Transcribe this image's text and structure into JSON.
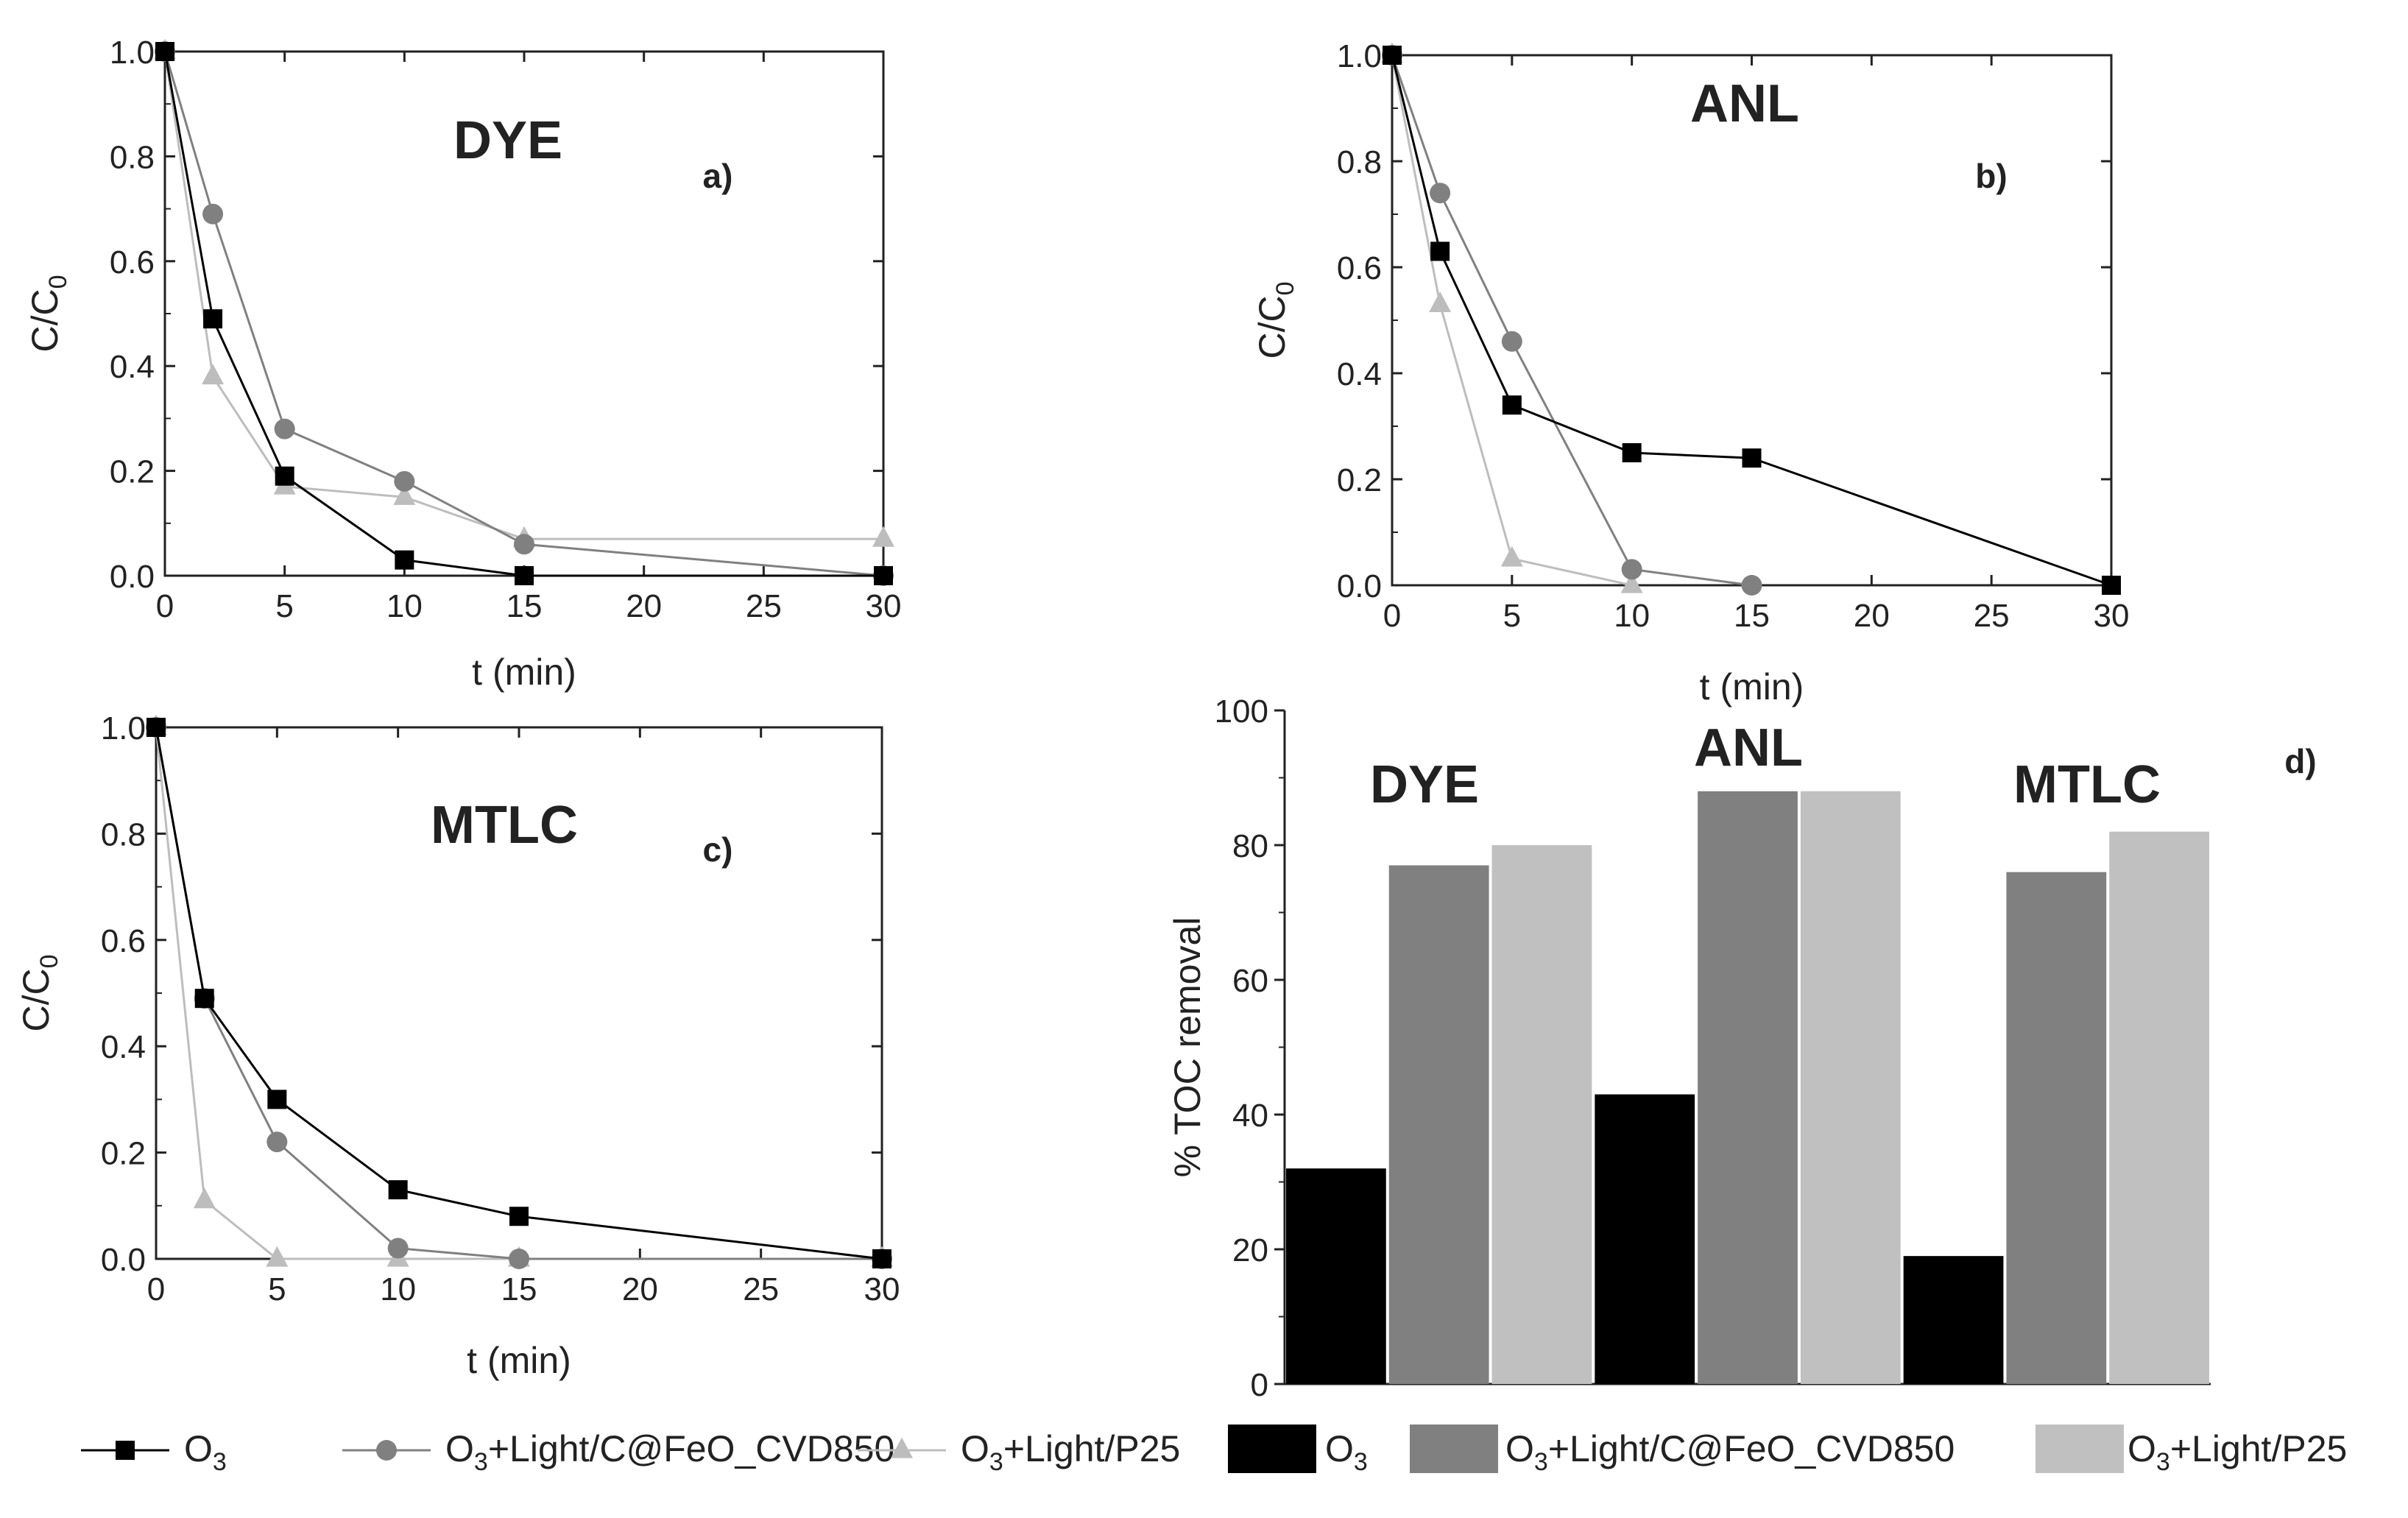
{
  "chart_data": [
    {
      "id": "a",
      "type": "line",
      "title": "DYE",
      "panel_label": "a)",
      "xlabel": "t (min)",
      "ylabel": "C/C",
      "ylabel_sub": "0",
      "xlim": [
        0,
        30
      ],
      "ylim": [
        0,
        1
      ],
      "xticks": [
        0,
        5,
        10,
        15,
        20,
        25,
        30
      ],
      "yticks": [
        0.0,
        0.2,
        0.4,
        0.6,
        0.8,
        1.0
      ],
      "xtick_labels": [
        "0",
        "5",
        "10",
        "15",
        "20",
        "25",
        "30"
      ],
      "ytick_labels": [
        "0.0",
        "0.2",
        "0.4",
        "0.6",
        "0.8",
        "1.0"
      ],
      "series": [
        {
          "name": "O3",
          "marker": "square",
          "color": "#000000",
          "x": [
            0,
            2,
            5,
            10,
            15,
            30
          ],
          "y": [
            1.0,
            0.49,
            0.19,
            0.03,
            0.0,
            0.0
          ]
        },
        {
          "name": "O3+Light/C@FeO_CVD850",
          "marker": "circle",
          "color": "#808080",
          "x": [
            0,
            2,
            5,
            10,
            15,
            30
          ],
          "y": [
            1.0,
            0.69,
            0.28,
            0.18,
            0.06,
            0.0
          ]
        },
        {
          "name": "O3+Light/P25",
          "marker": "triangle",
          "color": "#bdbdbd",
          "x": [
            0,
            2,
            5,
            10,
            15,
            30
          ],
          "y": [
            1.0,
            0.38,
            0.17,
            0.15,
            0.07,
            0.07
          ]
        }
      ]
    },
    {
      "id": "b",
      "type": "line",
      "title": "ANL",
      "panel_label": "b)",
      "xlabel": "t (min)",
      "ylabel": "C/C",
      "ylabel_sub": "0",
      "xlim": [
        0,
        30
      ],
      "ylim": [
        0,
        1
      ],
      "xticks": [
        0,
        5,
        10,
        15,
        20,
        25,
        30
      ],
      "yticks": [
        0.0,
        0.2,
        0.4,
        0.6,
        0.8,
        1.0
      ],
      "xtick_labels": [
        "0",
        "5",
        "10",
        "15",
        "20",
        "25",
        "30"
      ],
      "ytick_labels": [
        "0.0",
        "0.2",
        "0.4",
        "0.6",
        "0.8",
        "1.0"
      ],
      "series": [
        {
          "name": "O3",
          "marker": "square",
          "color": "#000000",
          "x": [
            0,
            2,
            5,
            10,
            15,
            30
          ],
          "y": [
            1.0,
            0.63,
            0.34,
            0.25,
            0.24,
            0.0
          ]
        },
        {
          "name": "O3+Light/C@FeO_CVD850",
          "marker": "circle",
          "color": "#808080",
          "x": [
            0,
            2,
            5,
            10,
            15
          ],
          "y": [
            1.0,
            0.74,
            0.46,
            0.03,
            0.0
          ]
        },
        {
          "name": "O3+Light/P25",
          "marker": "triangle",
          "color": "#bdbdbd",
          "x": [
            0,
            2,
            5,
            10
          ],
          "y": [
            1.0,
            0.53,
            0.05,
            0.0
          ]
        }
      ]
    },
    {
      "id": "c",
      "type": "line",
      "title": "MTLC",
      "panel_label": "c)",
      "xlabel": "t (min)",
      "ylabel": "C/C",
      "ylabel_sub": "0",
      "xlim": [
        0,
        30
      ],
      "ylim": [
        0,
        1
      ],
      "xticks": [
        0,
        5,
        10,
        15,
        20,
        25,
        30
      ],
      "yticks": [
        0.0,
        0.2,
        0.4,
        0.6,
        0.8,
        1.0
      ],
      "xtick_labels": [
        "0",
        "5",
        "10",
        "15",
        "20",
        "25",
        "30"
      ],
      "ytick_labels": [
        "0.0",
        "0.2",
        "0.4",
        "0.6",
        "0.8",
        "1.0"
      ],
      "series": [
        {
          "name": "O3",
          "marker": "square",
          "color": "#000000",
          "x": [
            0,
            2,
            5,
            10,
            15,
            30
          ],
          "y": [
            1.0,
            0.49,
            0.3,
            0.13,
            0.08,
            0.0
          ]
        },
        {
          "name": "O3+Light/C@FeO_CVD850",
          "marker": "circle",
          "color": "#808080",
          "x": [
            0,
            2,
            5,
            10,
            15,
            30
          ],
          "y": [
            1.0,
            0.49,
            0.22,
            0.02,
            0.0,
            0.0
          ]
        },
        {
          "name": "O3+Light/P25",
          "marker": "triangle",
          "color": "#bdbdbd",
          "x": [
            0,
            2,
            5,
            10,
            15,
            30
          ],
          "y": [
            1.0,
            0.11,
            0.0,
            0.0,
            0.0,
            0.0
          ]
        }
      ]
    },
    {
      "id": "d",
      "type": "bar",
      "panel_label": "d)",
      "ylabel": "% TOC removal",
      "ylim": [
        0,
        100
      ],
      "yticks": [
        0,
        20,
        40,
        60,
        80,
        100
      ],
      "ytick_labels": [
        "0",
        "20",
        "40",
        "60",
        "80",
        "100"
      ],
      "categories": [
        "DYE",
        "ANL",
        "MTLC"
      ],
      "series": [
        {
          "name": "O3",
          "color": "#000000",
          "values": [
            32,
            43,
            19
          ]
        },
        {
          "name": "O3+Light/C@FeO_CVD850",
          "color": "#808080",
          "values": [
            77,
            88,
            76
          ]
        },
        {
          "name": "O3+Light/P25",
          "color": "#c0c0c0",
          "values": [
            80,
            88,
            82
          ]
        }
      ]
    }
  ],
  "legend": {
    "line_items": [
      {
        "main": "O",
        "sub": "3",
        "rest": "",
        "marker": "square",
        "color": "#000000"
      },
      {
        "main": "O",
        "sub": "3",
        "rest": "+Light/C@FeO_CVD850",
        "marker": "circle",
        "color": "#808080"
      },
      {
        "main": "O",
        "sub": "3",
        "rest": "+Light/P25",
        "marker": "triangle",
        "color": "#bdbdbd"
      }
    ],
    "bar_items": [
      {
        "main": "O",
        "sub": "3",
        "rest": "",
        "color": "#000000"
      },
      {
        "main": "O",
        "sub": "3",
        "rest": "+Light/C@FeO_CVD850",
        "color": "#808080"
      },
      {
        "main": "O",
        "sub": "3",
        "rest": "+Light/P25",
        "color": "#c0c0c0"
      }
    ]
  }
}
